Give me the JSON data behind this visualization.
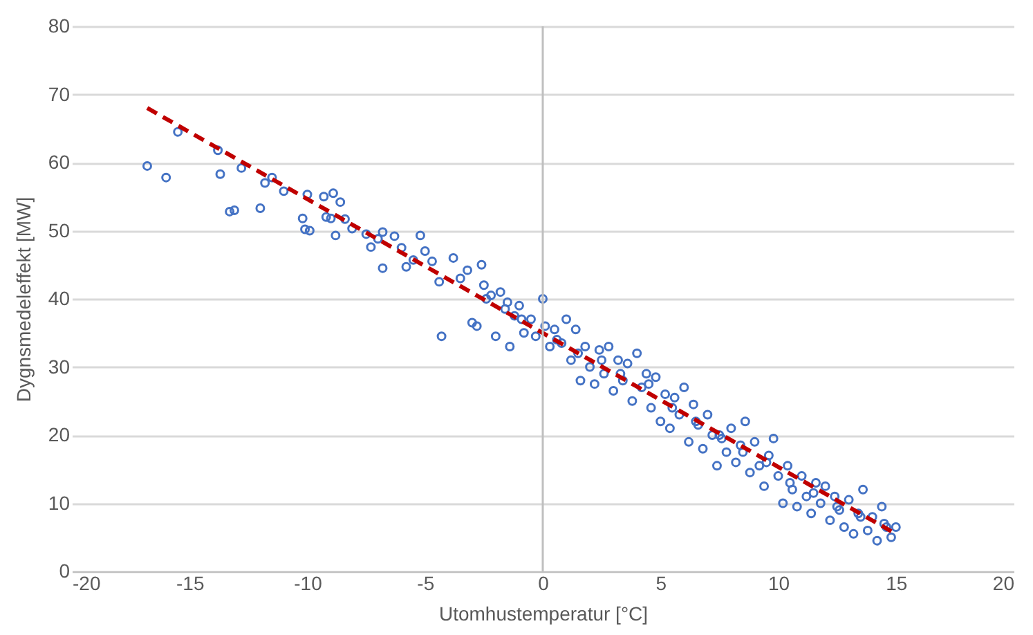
{
  "chart_data": {
    "type": "scatter",
    "xlabel": "Utomhustemperatur [°C]",
    "ylabel": "Dygnsmedeleffekt [MW]",
    "xlim": [
      -20,
      20
    ],
    "xticks": [
      -20,
      -15,
      -10,
      -5,
      0,
      5,
      10,
      15,
      20
    ],
    "ylim": [
      0,
      80
    ],
    "yticks": [
      0,
      10,
      20,
      30,
      40,
      50,
      60,
      70,
      80
    ],
    "grid": "y",
    "ref_lines": [
      {
        "axis": "x",
        "value": 0,
        "color": "#bfbfbf"
      }
    ],
    "series": [
      {
        "marker": "circle",
        "color": "#4472c4",
        "x": [
          -16.8,
          -16,
          -15.5,
          -13.8,
          -13.7,
          -13.3,
          -13.1,
          -12.8,
          -12,
          -11.8,
          -11.5,
          -11,
          -10.2,
          -10.1,
          -9.9,
          -10,
          -9.3,
          -9.2,
          -9,
          -8.9,
          -8.6,
          -8.4,
          -8.8,
          -8.1,
          -7.5,
          -7.3,
          -7,
          -6.8,
          -6.8,
          -6.3,
          -6,
          -5.8,
          -5.5,
          -5.2,
          -5,
          -4.7,
          -4.4,
          -4.3,
          -3.8,
          -3.5,
          -3.2,
          -3,
          -2.8,
          -2.6,
          -2.5,
          -2.2,
          -2,
          -1.8,
          -1.6,
          -1.4,
          -1.2,
          -1,
          -0.8,
          -0.5,
          -0.3,
          0,
          0.1,
          0.3,
          0.5,
          0.8,
          1,
          1.2,
          1.4,
          1.6,
          1.8,
          2,
          2.2,
          2.4,
          2.6,
          2.8,
          3,
          3.2,
          3.4,
          3.6,
          3.8,
          4,
          4.2,
          4.4,
          4.6,
          4.8,
          5,
          5.2,
          5.4,
          5.6,
          5.8,
          6,
          6.2,
          6.4,
          6.6,
          6.8,
          7,
          7.2,
          7.4,
          7.6,
          7.8,
          8,
          8.2,
          8.4,
          8.6,
          8.8,
          9,
          9.2,
          9.4,
          9.6,
          9.8,
          10,
          10.2,
          10.4,
          10.6,
          10.8,
          11,
          11.2,
          11.4,
          11.6,
          11.8,
          12,
          12.2,
          12.4,
          12.6,
          12.8,
          13,
          13.2,
          13.4,
          13.6,
          13.8,
          14,
          14.2,
          14.4,
          14.6,
          14.8,
          15,
          -2.4,
          -1.5,
          -0.9,
          0.6,
          1.5,
          2.5,
          3.3,
          4.5,
          5.5,
          6.5,
          7.5,
          8.5,
          9.5,
          10.5,
          11.5,
          12.5,
          13.5,
          14.5
        ],
        "values": [
          59.5,
          57.8,
          64.5,
          61.8,
          58.3,
          52.8,
          53,
          59.2,
          53.3,
          57,
          57.8,
          55.8,
          51.8,
          50.2,
          50,
          55.3,
          55,
          52,
          51.8,
          55.5,
          54.2,
          51.7,
          49.3,
          50.3,
          49.5,
          47.6,
          48.8,
          49.8,
          44.5,
          49.2,
          47.5,
          44.7,
          45.7,
          49.3,
          47,
          45.5,
          42.5,
          34.5,
          46,
          43,
          44.2,
          36.5,
          36,
          45,
          42,
          40.5,
          34.5,
          41,
          38.5,
          33,
          37.5,
          39,
          35,
          37,
          34.5,
          40,
          36,
          33,
          35.5,
          33.5,
          37,
          31,
          35.5,
          28,
          33,
          30,
          27.5,
          32.5,
          29,
          33,
          26.5,
          31,
          28,
          30.5,
          25,
          32,
          27,
          29,
          24,
          28.5,
          22,
          26,
          21,
          25.5,
          23,
          27,
          19,
          24.5,
          21.5,
          18,
          23,
          20,
          15.5,
          19.5,
          17.5,
          21,
          16,
          18.5,
          22,
          14.5,
          19,
          15.5,
          12.5,
          17,
          19.5,
          14,
          10,
          15.5,
          12,
          9.5,
          14,
          11,
          8.5,
          13,
          10,
          12.5,
          7.5,
          11,
          9,
          6.5,
          10.5,
          5.5,
          8.5,
          12,
          6,
          8,
          4.5,
          9.5,
          6.5,
          5,
          6.5,
          40,
          39.5,
          37,
          34,
          32,
          31,
          29,
          27.5,
          24,
          22,
          20,
          17.5,
          16,
          13,
          11.5,
          9.5,
          8,
          7
        ]
      },
      {
        "type": "line",
        "color": "#c00000",
        "line_style": "dashed",
        "x": [
          -16.8,
          15
        ],
        "values": [
          68,
          5.5
        ]
      }
    ]
  }
}
